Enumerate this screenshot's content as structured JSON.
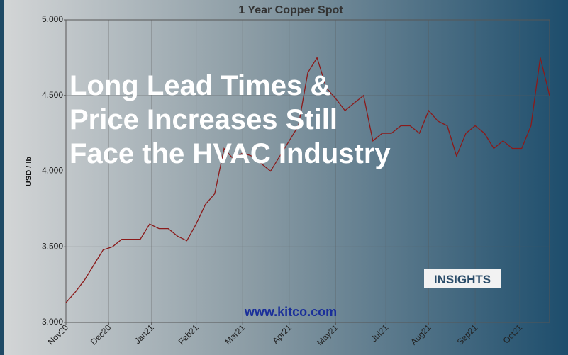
{
  "chart_data": {
    "type": "line",
    "title": "1 Year Copper Spot",
    "y_label": "USD / lb",
    "watermark": "www.kitco.com",
    "values": [
      3.13,
      3.2,
      3.28,
      3.38,
      3.48,
      3.5,
      3.55,
      3.55,
      3.55,
      3.65,
      3.62,
      3.62,
      3.57,
      3.54,
      3.65,
      3.78,
      3.85,
      4.15,
      4.08,
      4.12,
      4.1,
      4.05,
      4.0,
      4.1,
      4.2,
      4.3,
      4.65,
      4.75,
      4.55,
      4.48,
      4.4,
      4.45,
      4.5,
      4.2,
      4.25,
      4.25,
      4.3,
      4.3,
      4.25,
      4.4,
      4.33,
      4.3,
      4.1,
      4.25,
      4.3,
      4.25,
      4.15,
      4.2,
      4.15,
      4.15,
      4.3,
      4.75,
      4.5
    ],
    "color": "#8b1a1a",
    "xlim": [
      0,
      52
    ],
    "xticks": [
      {
        "value": 0,
        "label": "Nov20"
      },
      {
        "value": 4.6,
        "label": "Dec20"
      },
      {
        "value": 9.2,
        "label": "Jan21"
      },
      {
        "value": 14,
        "label": "Feb21"
      },
      {
        "value": 19,
        "label": "Mar21"
      },
      {
        "value": 24,
        "label": "Apr21"
      },
      {
        "value": 29,
        "label": "May21"
      },
      {
        "value": 34.4,
        "label": "Jul21"
      },
      {
        "value": 39,
        "label": "Aug21"
      },
      {
        "value": 44,
        "label": "Sep21"
      },
      {
        "value": 48.8,
        "label": "Oct21"
      }
    ],
    "ylim": [
      3,
      5
    ],
    "yticks": [
      {
        "value": 3,
        "label": "3.000"
      },
      {
        "value": 3.5,
        "label": "3.500"
      },
      {
        "value": 4,
        "label": "4.000"
      },
      {
        "value": 4.5,
        "label": "4.500"
      },
      {
        "value": 5,
        "label": "5.000"
      }
    ],
    "grid": true
  },
  "overlay": {
    "headline": [
      "Long Lead Times &",
      "Price Increases Still",
      "Face the HVAC Industry"
    ],
    "badge": "INSIGHTS"
  }
}
